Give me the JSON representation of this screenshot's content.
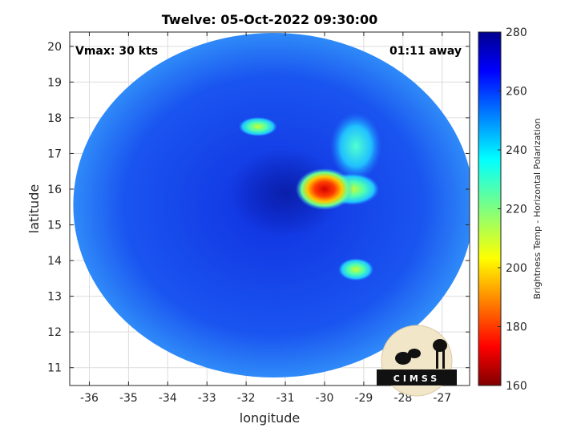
{
  "chart_data": {
    "type": "heatmap",
    "title": "Twelve: 05-Oct-2022 09:30:00",
    "xlabel": "longitude",
    "ylabel": "latitude",
    "xlim": [
      -36.5,
      -26.3
    ],
    "ylim": [
      10.5,
      20.4
    ],
    "x_ticks": [
      -36,
      -35,
      -34,
      -33,
      -32,
      -31,
      -30,
      -29,
      -28,
      -27
    ],
    "y_ticks": [
      11,
      12,
      13,
      14,
      15,
      16,
      17,
      18,
      19,
      20
    ],
    "grid": true,
    "annotations": {
      "vmax": "Vmax: 30 kts",
      "time_offset": "01:11 away"
    },
    "colorbar": {
      "label": "Brightness Temp - Horizontal Polarization",
      "ticks": [
        160,
        180,
        200,
        220,
        240,
        260,
        280
      ],
      "range": [
        160,
        280
      ],
      "colormap": "jet"
    },
    "swath_center": {
      "lon": -31.3,
      "lat": 15.55
    },
    "features": [
      {
        "name": "storm core",
        "lon": -30.0,
        "lat": 16.0,
        "value": 170
      },
      {
        "name": "convective band east",
        "lon": -29.3,
        "lat": 16.0,
        "value": 200
      },
      {
        "name": "northeast band",
        "lon": -29.2,
        "lat": 17.2,
        "value": 225
      },
      {
        "name": "north spot",
        "lon": -31.7,
        "lat": 17.75,
        "value": 215
      },
      {
        "name": "southeast spot",
        "lon": -29.2,
        "lat": 13.75,
        "value": 215
      },
      {
        "name": "eye region",
        "lon": -31.0,
        "lat": 15.9,
        "value": 275
      }
    ]
  },
  "logo": {
    "text": "CIMSS"
  }
}
